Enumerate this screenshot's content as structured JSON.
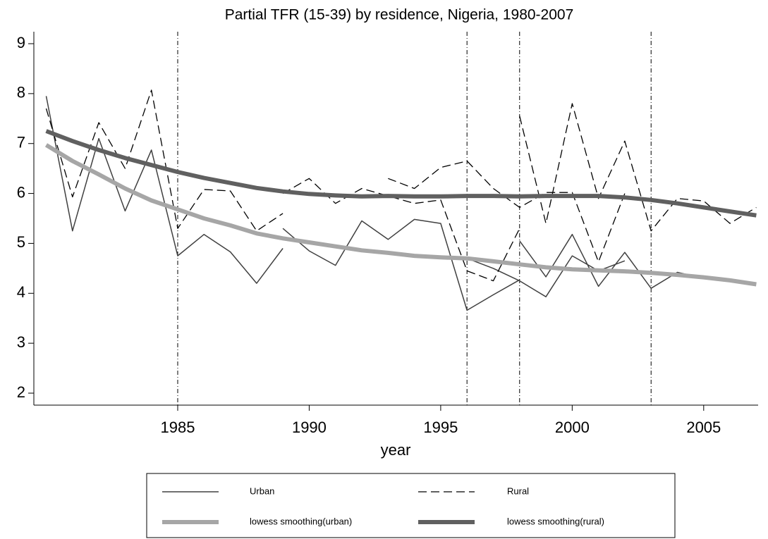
{
  "chart_data": {
    "type": "line",
    "title": "Partial TFR (15-39) by residence, Nigeria, 1980-2007",
    "x_label": "year",
    "xlim": [
      1979.53,
      2007.07
    ],
    "ylim": [
      1.76,
      9.24
    ],
    "xticks": [
      1985,
      1990,
      1995,
      2000,
      2005
    ],
    "yticks": [
      2,
      3,
      4,
      5,
      6,
      7,
      8,
      9
    ],
    "vlines": [
      1985,
      1996,
      1998,
      2003
    ],
    "grid": false,
    "legend": "bottom",
    "series": [
      {
        "name": "Urban",
        "color": "#404040",
        "style": "solid",
        "x": [
          1980,
          1981,
          1982,
          1983,
          1984,
          1985,
          1986,
          1987,
          1988,
          1989,
          null,
          1989,
          1990,
          1991,
          1992,
          1993,
          1994,
          1995,
          1996,
          1997,
          1998,
          null,
          1996,
          1997,
          1998,
          1999,
          2000,
          2001,
          2002,
          null,
          1998,
          1999,
          2000,
          2001,
          2002,
          2003,
          2004,
          2005
        ],
        "values": [
          7.95,
          5.25,
          7.1,
          5.65,
          6.87,
          4.75,
          5.18,
          4.83,
          4.2,
          4.9,
          null,
          5.3,
          4.85,
          4.56,
          5.45,
          5.08,
          5.48,
          5.4,
          3.66,
          3.97,
          4.27,
          null,
          4.7,
          4.5,
          4.25,
          3.93,
          4.75,
          4.45,
          4.65,
          null,
          5.05,
          4.33,
          5.18,
          4.14,
          4.82,
          4.1,
          4.42,
          4.3
        ]
      },
      {
        "name": "Rural",
        "color": "#000000",
        "style": "dashed",
        "x": [
          1980,
          1981,
          1982,
          1983,
          1984,
          1985,
          1986,
          1987,
          1988,
          1989,
          null,
          1989,
          1990,
          1991,
          1992,
          1993,
          1994,
          1995,
          1996,
          1997,
          1998,
          null,
          1993,
          1994,
          1995,
          1996,
          1997,
          1998,
          1999,
          2000,
          2001,
          2002,
          null,
          1998,
          1999,
          2000,
          2001,
          2002,
          2003,
          2004,
          2005,
          2006,
          2007
        ],
        "values": [
          7.7,
          5.93,
          7.42,
          6.5,
          8.07,
          5.3,
          6.08,
          6.05,
          5.25,
          5.6,
          null,
          6.0,
          6.3,
          5.8,
          6.1,
          5.95,
          5.8,
          5.87,
          4.45,
          4.25,
          5.3,
          null,
          6.3,
          6.1,
          6.52,
          6.65,
          6.1,
          5.72,
          6.02,
          6.02,
          4.63,
          6.0,
          null,
          7.55,
          5.4,
          7.8,
          5.9,
          7.05,
          5.25,
          5.9,
          5.85,
          5.4,
          5.72
        ]
      },
      {
        "name": "lowess smoothing(urban)",
        "color": "#a6a6a6",
        "style": "thick",
        "x": [
          1980,
          1981,
          1982,
          1983,
          1984,
          1985,
          1986,
          1987,
          1988,
          1989,
          1990,
          1991,
          1992,
          1993,
          1994,
          1995,
          1996,
          1997,
          1998,
          1999,
          2000,
          2001,
          2002,
          2003,
          2004,
          2005,
          2006,
          2007
        ],
        "values": [
          6.97,
          6.65,
          6.38,
          6.1,
          5.86,
          5.68,
          5.5,
          5.36,
          5.2,
          5.1,
          5.02,
          4.94,
          4.86,
          4.81,
          4.75,
          4.72,
          4.7,
          4.64,
          4.58,
          4.52,
          4.48,
          4.46,
          4.44,
          4.41,
          4.37,
          4.32,
          4.26,
          4.18
        ]
      },
      {
        "name": "lowess smoothing(rural)",
        "color": "#606060",
        "style": "thick",
        "x": [
          1980,
          1981,
          1982,
          1983,
          1984,
          1985,
          1986,
          1987,
          1988,
          1989,
          1990,
          1991,
          1992,
          1993,
          1994,
          1995,
          1996,
          1997,
          1998,
          1999,
          2000,
          2001,
          2002,
          2003,
          2004,
          2005,
          2006,
          2007
        ],
        "values": [
          7.25,
          7.05,
          6.87,
          6.71,
          6.57,
          6.43,
          6.31,
          6.21,
          6.11,
          6.04,
          5.99,
          5.96,
          5.94,
          5.95,
          5.94,
          5.94,
          5.95,
          5.95,
          5.94,
          5.95,
          5.95,
          5.95,
          5.92,
          5.87,
          5.8,
          5.72,
          5.64,
          5.56
        ]
      }
    ]
  }
}
